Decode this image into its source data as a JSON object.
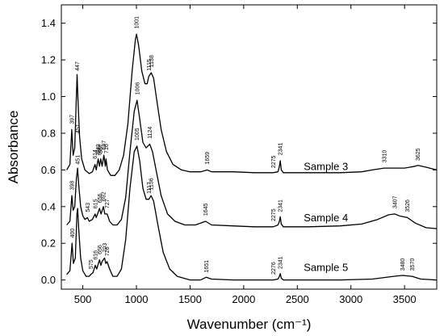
{
  "chart_data": {
    "type": "line",
    "xlabel": "Wavenumber (cm⁻¹)",
    "ylabel": "Absorbance",
    "xlim": [
      300,
      3800
    ],
    "ylim": [
      -0.05,
      1.5
    ],
    "xticks": [
      {
        "value": 500,
        "label": "500"
      },
      {
        "value": 1000,
        "label": "1000"
      },
      {
        "value": 1500,
        "label": "1500"
      },
      {
        "value": 2000,
        "label": "2000"
      },
      {
        "value": 2500,
        "label": "2500"
      },
      {
        "value": 3000,
        "label": "3000"
      },
      {
        "value": 3500,
        "label": "3500"
      }
    ],
    "yticks": [
      {
        "value": 0.0,
        "label": "0.0"
      },
      {
        "value": 0.2,
        "label": "0.2"
      },
      {
        "value": 0.4,
        "label": "0.4"
      },
      {
        "value": 0.6,
        "label": "0.6"
      },
      {
        "value": 0.8,
        "label": "0.8"
      },
      {
        "value": 1.0,
        "label": "1.0"
      },
      {
        "value": 1.2,
        "label": "1.2"
      },
      {
        "value": 1.4,
        "label": "1.4"
      }
    ],
    "grid": false,
    "series": [
      {
        "name": "Sample 3",
        "label_at": [
          2560,
          0.6
        ],
        "points": [
          [
            350,
            0.6
          ],
          [
            380,
            0.63
          ],
          [
            397,
            0.82
          ],
          [
            410,
            0.68
          ],
          [
            425,
            0.72
          ],
          [
            440,
            1.0
          ],
          [
            447,
            1.12
          ],
          [
            455,
            0.98
          ],
          [
            470,
            0.78
          ],
          [
            490,
            0.66
          ],
          [
            520,
            0.6
          ],
          [
            560,
            0.58
          ],
          [
            590,
            0.59
          ],
          [
            614,
            0.63
          ],
          [
            625,
            0.6
          ],
          [
            643,
            0.66
          ],
          [
            655,
            0.62
          ],
          [
            667,
            0.66
          ],
          [
            680,
            0.62
          ],
          [
            697,
            0.68
          ],
          [
            710,
            0.62
          ],
          [
            716,
            0.66
          ],
          [
            730,
            0.6
          ],
          [
            760,
            0.57
          ],
          [
            800,
            0.57
          ],
          [
            840,
            0.6
          ],
          [
            880,
            0.68
          ],
          [
            920,
            0.85
          ],
          [
            960,
            1.14
          ],
          [
            990,
            1.31
          ],
          [
            1001,
            1.34
          ],
          [
            1020,
            1.28
          ],
          [
            1050,
            1.14
          ],
          [
            1080,
            1.07
          ],
          [
            1100,
            1.07
          ],
          [
            1115,
            1.11
          ],
          [
            1138,
            1.13
          ],
          [
            1160,
            1.1
          ],
          [
            1190,
            0.98
          ],
          [
            1230,
            0.82
          ],
          [
            1280,
            0.7
          ],
          [
            1340,
            0.63
          ],
          [
            1420,
            0.6
          ],
          [
            1500,
            0.59
          ],
          [
            1600,
            0.59
          ],
          [
            1659,
            0.6
          ],
          [
            1700,
            0.59
          ],
          [
            1900,
            0.59
          ],
          [
            2100,
            0.585
          ],
          [
            2275,
            0.585
          ],
          [
            2320,
            0.59
          ],
          [
            2333,
            0.62
          ],
          [
            2341,
            0.65
          ],
          [
            2350,
            0.6
          ],
          [
            2370,
            0.585
          ],
          [
            2600,
            0.585
          ],
          [
            2900,
            0.585
          ],
          [
            3100,
            0.59
          ],
          [
            3200,
            0.6
          ],
          [
            3310,
            0.61
          ],
          [
            3400,
            0.61
          ],
          [
            3500,
            0.61
          ],
          [
            3600,
            0.62
          ],
          [
            3625,
            0.625
          ],
          [
            3700,
            0.615
          ],
          [
            3800,
            0.6
          ]
        ]
      },
      {
        "name": "Sample 4",
        "label_at": [
          2560,
          0.32
        ],
        "points": [
          [
            350,
            0.3
          ],
          [
            380,
            0.32
          ],
          [
            398,
            0.46
          ],
          [
            410,
            0.38
          ],
          [
            425,
            0.4
          ],
          [
            440,
            0.55
          ],
          [
            451,
            0.61
          ],
          [
            462,
            0.52
          ],
          [
            480,
            0.4
          ],
          [
            500,
            0.35
          ],
          [
            520,
            0.33
          ],
          [
            543,
            0.34
          ],
          [
            560,
            0.32
          ],
          [
            590,
            0.33
          ],
          [
            615,
            0.36
          ],
          [
            625,
            0.34
          ],
          [
            656,
            0.39
          ],
          [
            670,
            0.36
          ],
          [
            692,
            0.4
          ],
          [
            705,
            0.36
          ],
          [
            727,
            0.36
          ],
          [
            750,
            0.32
          ],
          [
            780,
            0.3
          ],
          [
            820,
            0.3
          ],
          [
            860,
            0.33
          ],
          [
            900,
            0.45
          ],
          [
            940,
            0.7
          ],
          [
            980,
            0.92
          ],
          [
            1006,
            0.98
          ],
          [
            1030,
            0.88
          ],
          [
            1060,
            0.75
          ],
          [
            1090,
            0.72
          ],
          [
            1124,
            0.74
          ],
          [
            1150,
            0.7
          ],
          [
            1190,
            0.58
          ],
          [
            1230,
            0.46
          ],
          [
            1290,
            0.36
          ],
          [
            1360,
            0.32
          ],
          [
            1450,
            0.3
          ],
          [
            1550,
            0.3
          ],
          [
            1645,
            0.32
          ],
          [
            1700,
            0.3
          ],
          [
            1900,
            0.295
          ],
          [
            2100,
            0.29
          ],
          [
            2275,
            0.29
          ],
          [
            2320,
            0.3
          ],
          [
            2333,
            0.32
          ],
          [
            2341,
            0.345
          ],
          [
            2350,
            0.305
          ],
          [
            2370,
            0.29
          ],
          [
            2600,
            0.29
          ],
          [
            2900,
            0.295
          ],
          [
            3100,
            0.305
          ],
          [
            3250,
            0.33
          ],
          [
            3350,
            0.355
          ],
          [
            3407,
            0.36
          ],
          [
            3450,
            0.35
          ],
          [
            3526,
            0.34
          ],
          [
            3600,
            0.31
          ],
          [
            3700,
            0.285
          ],
          [
            3800,
            0.28
          ]
        ]
      },
      {
        "name": "Sample 5",
        "label_at": [
          2560,
          0.05
        ],
        "points": [
          [
            350,
            0.03
          ],
          [
            380,
            0.05
          ],
          [
            400,
            0.2
          ],
          [
            412,
            0.09
          ],
          [
            430,
            0.12
          ],
          [
            445,
            0.36
          ],
          [
            452,
            0.39
          ],
          [
            462,
            0.28
          ],
          [
            480,
            0.12
          ],
          [
            500,
            0.05
          ],
          [
            530,
            0.02
          ],
          [
            560,
            0.02
          ],
          [
            575,
            0.03
          ],
          [
            595,
            0.04
          ],
          [
            616,
            0.08
          ],
          [
            630,
            0.06
          ],
          [
            656,
            0.11
          ],
          [
            668,
            0.08
          ],
          [
            679,
            0.1
          ],
          [
            703,
            0.12
          ],
          [
            715,
            0.09
          ],
          [
            726,
            0.1
          ],
          [
            750,
            0.06
          ],
          [
            780,
            0.02
          ],
          [
            820,
            0.02
          ],
          [
            860,
            0.06
          ],
          [
            900,
            0.22
          ],
          [
            940,
            0.5
          ],
          [
            980,
            0.7
          ],
          [
            1005,
            0.73
          ],
          [
            1030,
            0.65
          ],
          [
            1060,
            0.5
          ],
          [
            1090,
            0.44
          ],
          [
            1117,
            0.44
          ],
          [
            1136,
            0.46
          ],
          [
            1160,
            0.43
          ],
          [
            1200,
            0.3
          ],
          [
            1250,
            0.15
          ],
          [
            1310,
            0.06
          ],
          [
            1380,
            0.02
          ],
          [
            1500,
            0.0
          ],
          [
            1600,
            0.0
          ],
          [
            1651,
            0.015
          ],
          [
            1700,
            0.005
          ],
          [
            1900,
            0.0
          ],
          [
            2100,
            0.0
          ],
          [
            2276,
            0.0
          ],
          [
            2320,
            0.005
          ],
          [
            2333,
            0.02
          ],
          [
            2341,
            0.035
          ],
          [
            2350,
            0.01
          ],
          [
            2370,
            0.0
          ],
          [
            2600,
            0.0
          ],
          [
            2900,
            0.0
          ],
          [
            3200,
            0.005
          ],
          [
            3400,
            0.02
          ],
          [
            3480,
            0.025
          ],
          [
            3570,
            0.02
          ],
          [
            3650,
            0.005
          ],
          [
            3800,
            0.0
          ]
        ]
      }
    ],
    "peak_labels": [
      {
        "text": "447",
        "x": 447,
        "y": 1.14
      },
      {
        "text": "397",
        "x": 397,
        "y": 0.85
      },
      {
        "text": "451",
        "x": 451,
        "y": 0.8
      },
      {
        "text": "614",
        "x": 614,
        "y": 0.66
      },
      {
        "text": "643",
        "x": 643,
        "y": 0.69
      },
      {
        "text": "655",
        "x": 655,
        "y": 0.68
      },
      {
        "text": "667",
        "x": 667,
        "y": 0.69
      },
      {
        "text": "697",
        "x": 697,
        "y": 0.71
      },
      {
        "text": "716",
        "x": 716,
        "y": 0.69
      },
      {
        "text": "1001",
        "x": 1001,
        "y": 1.37
      },
      {
        "text": "1006",
        "x": 1006,
        "y": 1.01
      },
      {
        "text": "1115",
        "x": 1115,
        "y": 1.14
      },
      {
        "text": "1138",
        "x": 1138,
        "y": 1.16
      },
      {
        "text": "1659",
        "x": 1659,
        "y": 0.63
      },
      {
        "text": "2275",
        "x": 2275,
        "y": 0.61
      },
      {
        "text": "2341",
        "x": 2341,
        "y": 0.68
      },
      {
        "text": "3310",
        "x": 3310,
        "y": 0.64
      },
      {
        "text": "3625",
        "x": 3625,
        "y": 0.65
      },
      {
        "text": "398",
        "x": 398,
        "y": 0.49
      },
      {
        "text": "451",
        "x": 451,
        "y": 0.63
      },
      {
        "text": "543",
        "x": 543,
        "y": 0.37
      },
      {
        "text": "615",
        "x": 615,
        "y": 0.39
      },
      {
        "text": "656",
        "x": 656,
        "y": 0.42
      },
      {
        "text": "692",
        "x": 692,
        "y": 0.43
      },
      {
        "text": "727",
        "x": 727,
        "y": 0.39
      },
      {
        "text": "1005",
        "x": 1005,
        "y": 0.76
      },
      {
        "text": "1124",
        "x": 1124,
        "y": 0.77
      },
      {
        "text": "1117",
        "x": 1117,
        "y": 0.47
      },
      {
        "text": "1136",
        "x": 1136,
        "y": 0.49
      },
      {
        "text": "1645",
        "x": 1645,
        "y": 0.35
      },
      {
        "text": "2275",
        "x": 2275,
        "y": 0.32
      },
      {
        "text": "2341",
        "x": 2341,
        "y": 0.37
      },
      {
        "text": "3407",
        "x": 3407,
        "y": 0.39
      },
      {
        "text": "3526",
        "x": 3526,
        "y": 0.37
      },
      {
        "text": "400",
        "x": 400,
        "y": 0.23
      },
      {
        "text": "575",
        "x": 575,
        "y": 0.06
      },
      {
        "text": "616",
        "x": 616,
        "y": 0.11
      },
      {
        "text": "656",
        "x": 656,
        "y": 0.14
      },
      {
        "text": "703",
        "x": 703,
        "y": 0.15
      },
      {
        "text": "726",
        "x": 726,
        "y": 0.13
      },
      {
        "text": "1651",
        "x": 1651,
        "y": 0.04
      },
      {
        "text": "2276",
        "x": 2276,
        "y": 0.03
      },
      {
        "text": "2341",
        "x": 2341,
        "y": 0.06
      },
      {
        "text": "3480",
        "x": 3480,
        "y": 0.05
      },
      {
        "text": "3570",
        "x": 3570,
        "y": 0.05
      }
    ]
  }
}
